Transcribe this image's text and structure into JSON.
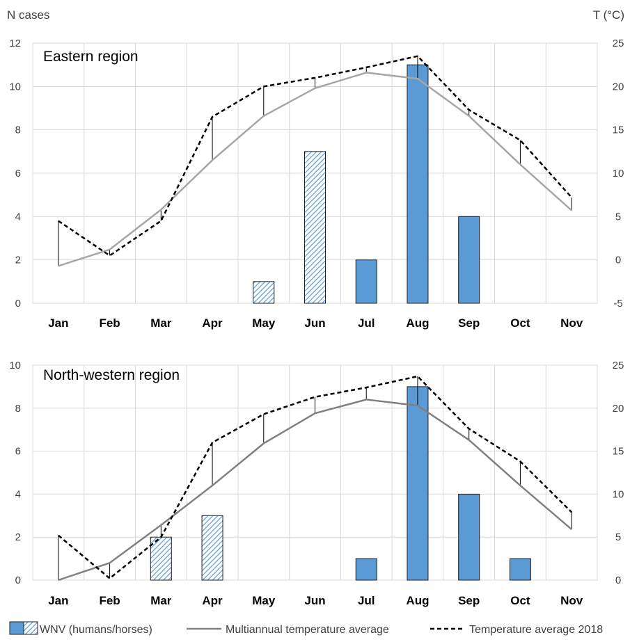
{
  "units": {
    "left": "N cases",
    "right": "T (°C)"
  },
  "colors": {
    "bar_fill": "#5B9BD5",
    "bar_stroke": "#1F1F1F",
    "grid": "#D9D9D9",
    "line_east": "#A6A6A6",
    "line_nw": "#808080",
    "dashed": "#000000"
  },
  "legend": {
    "bars": "WNV (humans/horses)",
    "multiannual": "Multiannual temperature average",
    "temp2018": "Temperature average 2018"
  },
  "chart_data": [
    {
      "type": "bar+line",
      "title": "Eastern region",
      "categories": [
        "Jan",
        "Feb",
        "Mar",
        "Apr",
        "May",
        "Jun",
        "Jul",
        "Aug",
        "Sep",
        "Oct",
        "Nov"
      ],
      "left_axis": {
        "label": "N cases",
        "range": [
          0,
          12
        ],
        "ticks": [
          "0",
          "2",
          "4",
          "6",
          "8",
          "10",
          "12"
        ]
      },
      "right_axis": {
        "label": "T (°C)",
        "range": [
          -5,
          25
        ],
        "ticks": [
          "-5",
          "0",
          "5",
          "10",
          "15",
          "20",
          "25"
        ]
      },
      "cases": [
        0,
        0,
        0,
        0,
        1,
        7,
        2,
        11,
        4,
        0,
        0
      ],
      "case_pattern": [
        "",
        "",
        "",
        "",
        "hatched",
        "hatched",
        "solid",
        "solid",
        "solid",
        "",
        ""
      ],
      "multiannual_temp": [
        -0.7,
        1.2,
        5.8,
        11.5,
        16.6,
        19.8,
        21.6,
        20.9,
        16.6,
        11.0,
        5.7
      ],
      "temp_2018": [
        4.5,
        0.5,
        4.5,
        16.5,
        20.0,
        21.0,
        22.2,
        23.5,
        17.3,
        13.8,
        7.2
      ],
      "grid": true
    },
    {
      "type": "bar+line",
      "title": "North-western region",
      "categories": [
        "Jan",
        "Feb",
        "Mar",
        "Apr",
        "May",
        "Jun",
        "Jul",
        "Aug",
        "Sep",
        "Oct",
        "Nov"
      ],
      "left_axis": {
        "label": "N cases",
        "range": [
          0,
          10
        ],
        "ticks": [
          "0",
          "2",
          "4",
          "6",
          "8",
          "10"
        ]
      },
      "right_axis": {
        "label": "T (°C)",
        "range": [
          0,
          25
        ],
        "ticks": [
          "0",
          "5",
          "10",
          "15",
          "20",
          "25"
        ]
      },
      "cases": [
        0,
        0,
        2,
        3,
        0,
        0,
        1,
        9,
        4,
        1,
        0
      ],
      "case_pattern": [
        "",
        "",
        "hatched",
        "hatched",
        "",
        "",
        "solid",
        "solid",
        "solid",
        "solid",
        ""
      ],
      "multiannual_temp": [
        0.0,
        2.0,
        6.4,
        11.0,
        15.9,
        19.4,
        21.0,
        20.3,
        16.3,
        11.0,
        5.9
      ],
      "temp_2018": [
        5.2,
        0.2,
        5.0,
        16.0,
        19.3,
        21.3,
        22.4,
        23.7,
        17.6,
        13.8,
        7.9
      ],
      "grid": true
    }
  ]
}
